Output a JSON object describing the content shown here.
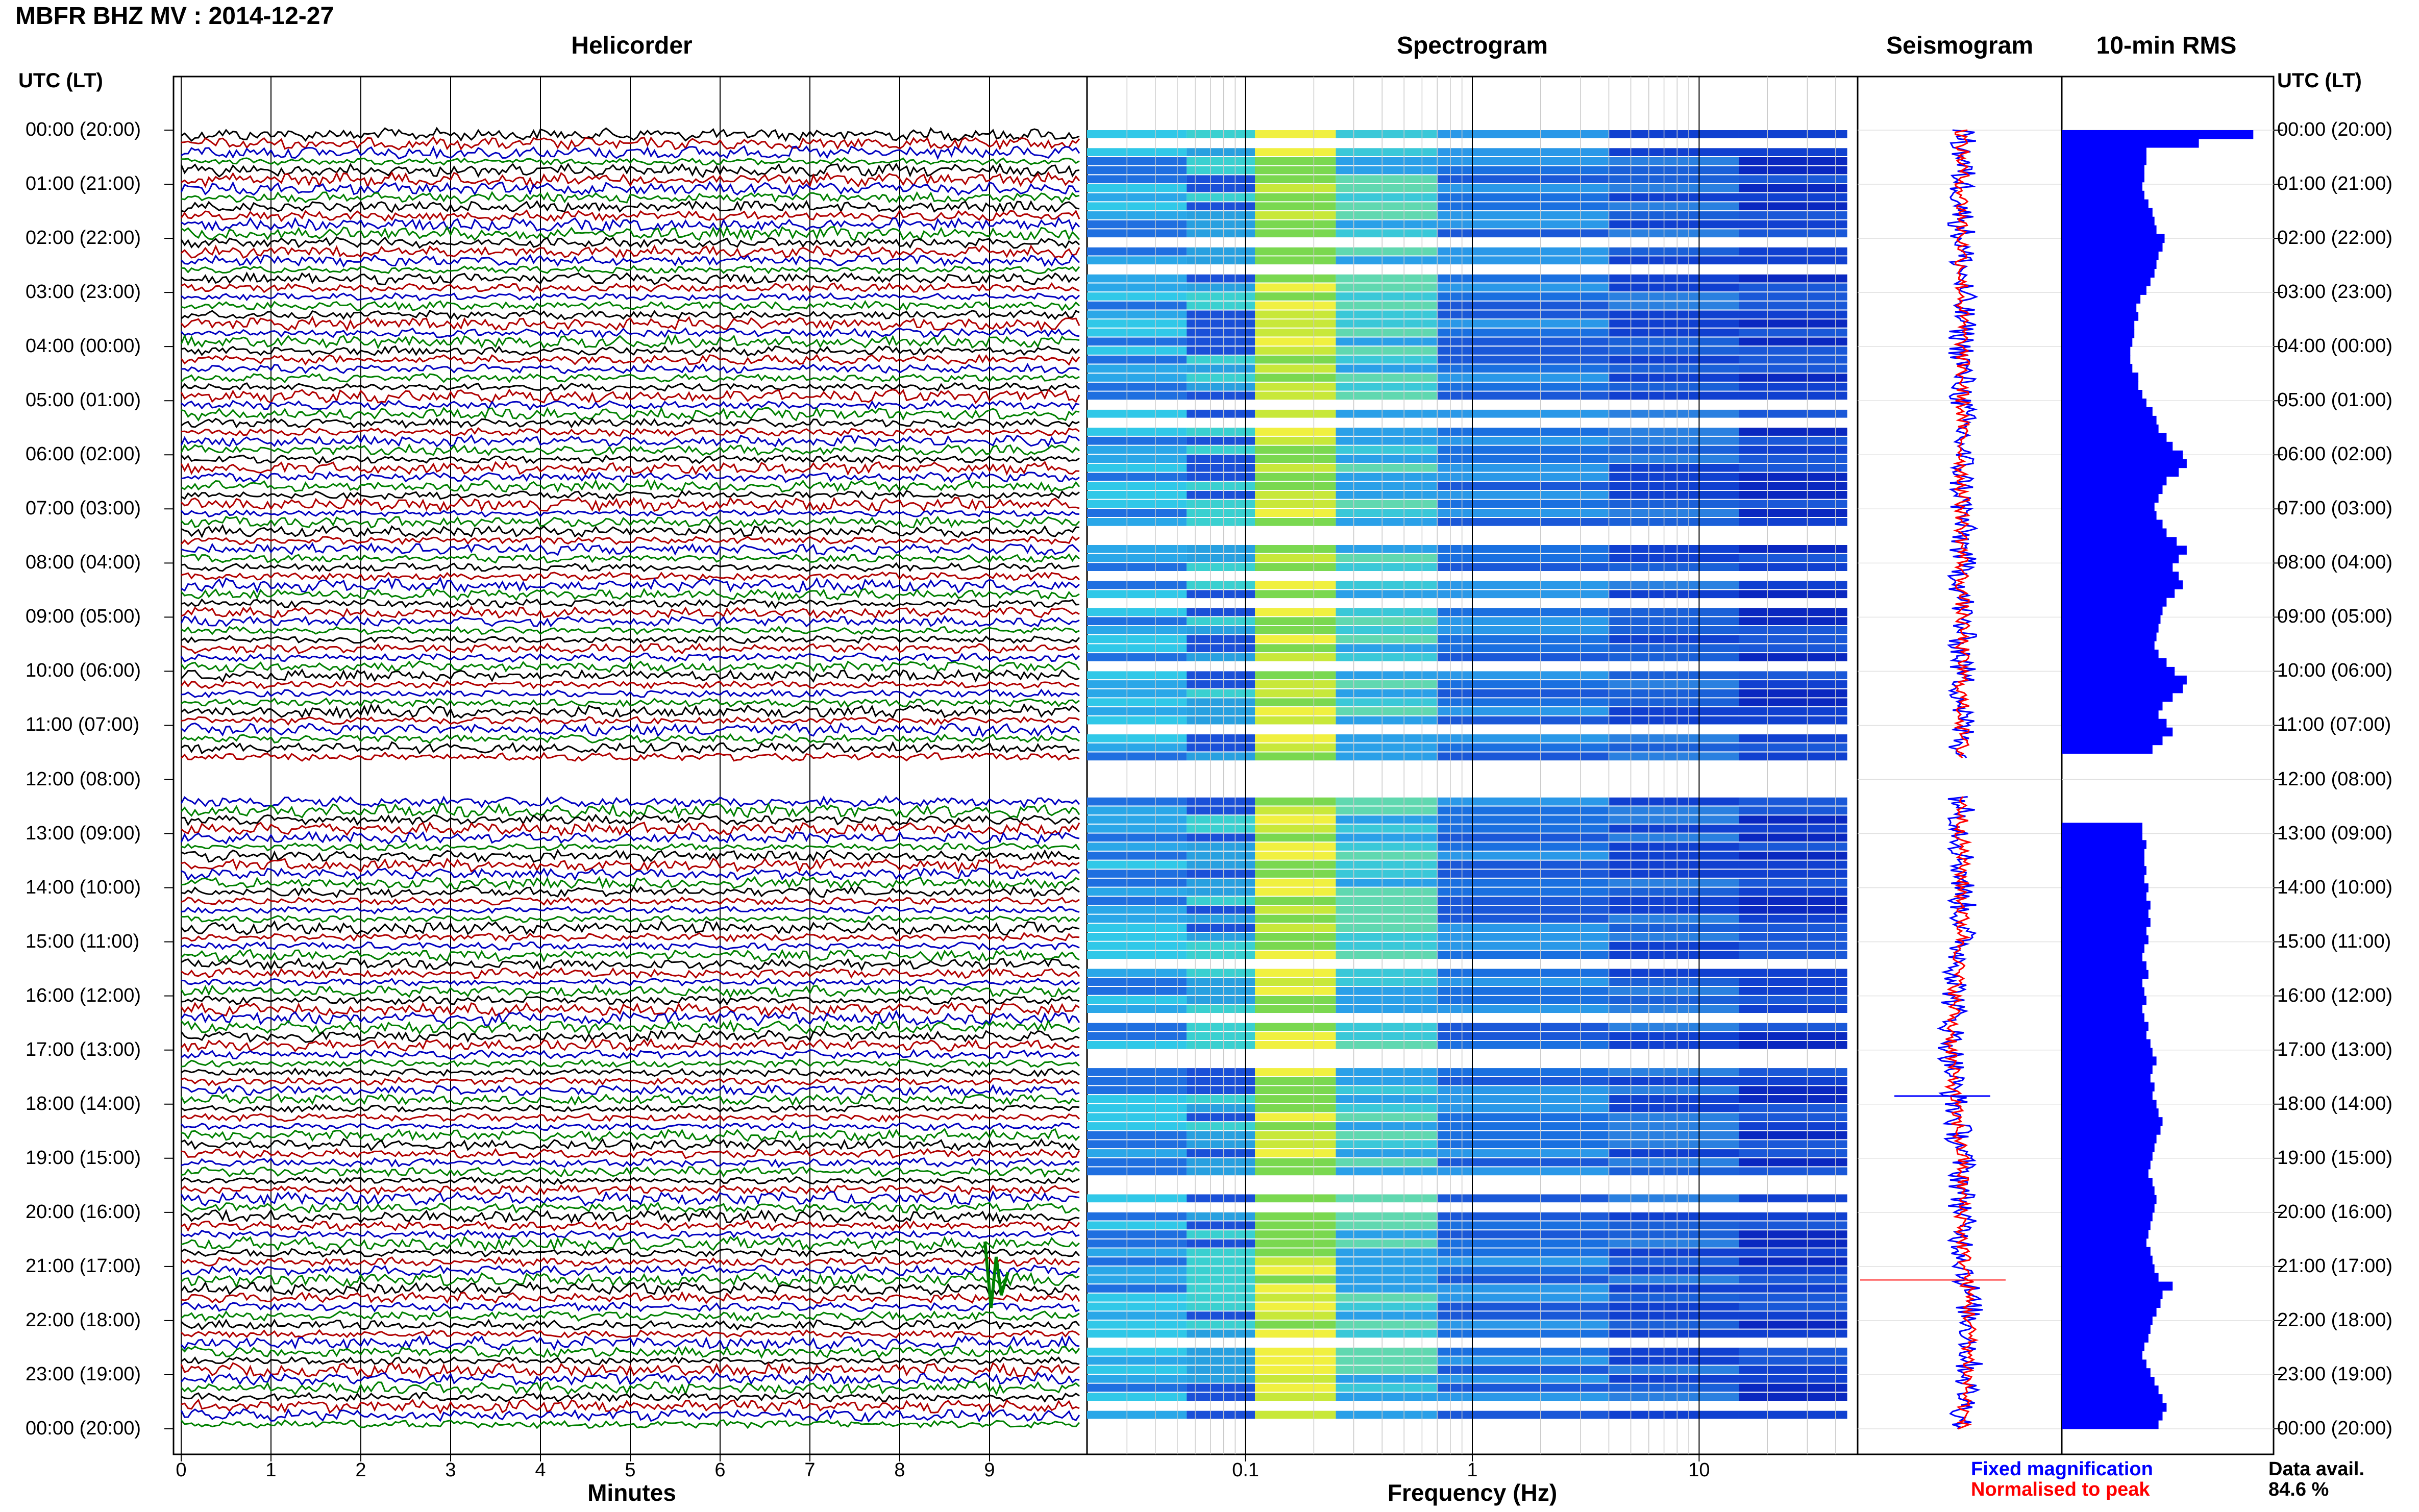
{
  "title": "MBFR BHZ MV : 2014-12-27",
  "panels": {
    "helicorder": "Helicorder",
    "spectrogram": "Spectrogram",
    "seismogram": "Seismogram",
    "rms": "10-min RMS"
  },
  "axis_head_left": "UTC (LT)",
  "axis_head_right": "UTC (LT)",
  "time_labels": [
    "00:00 (20:00)",
    "01:00 (21:00)",
    "02:00 (22:00)",
    "03:00 (23:00)",
    "04:00 (00:00)",
    "05:00 (01:00)",
    "06:00 (02:00)",
    "07:00 (03:00)",
    "08:00 (04:00)",
    "09:00 (05:00)",
    "10:00 (06:00)",
    "11:00 (07:00)",
    "12:00 (08:00)",
    "13:00 (09:00)",
    "14:00 (10:00)",
    "15:00 (11:00)",
    "16:00 (12:00)",
    "17:00 (13:00)",
    "18:00 (14:00)",
    "19:00 (15:00)",
    "20:00 (16:00)",
    "21:00 (17:00)",
    "22:00 (18:00)",
    "23:00 (19:00)",
    "00:00 (20:00)"
  ],
  "chart_data": [
    {
      "type": "line",
      "name": "helicorder",
      "title": "Helicorder",
      "xlabel": "Minutes",
      "xticks": [
        "0",
        "1",
        "2",
        "3",
        "4",
        "5",
        "6",
        "7",
        "8",
        "9"
      ],
      "xlim": [
        0,
        10
      ],
      "trace_colors": [
        "#000000",
        "#b00000",
        "#0000c0",
        "#008000"
      ],
      "gap_hours": [
        11.6,
        12.3
      ]
    },
    {
      "type": "heatmap",
      "name": "spectrogram",
      "title": "Spectrogram",
      "xlabel": "Frequency (Hz)",
      "xscale": "log",
      "xlim": [
        0.02,
        50
      ],
      "xticks": [
        "0.1",
        "1",
        "10"
      ],
      "gap_hours": [
        11.6,
        12.3
      ]
    },
    {
      "type": "line",
      "name": "seismogram",
      "title": "Seismogram",
      "series_colors": [
        "#0000ff",
        "#ff0000"
      ],
      "legend": [
        "Fixed magnification",
        "Normalised to peak"
      ]
    },
    {
      "type": "bar",
      "name": "rms",
      "title": "10-min RMS",
      "orientation": "horizontal",
      "bar_color": "#0000ff",
      "values": [
        0.95,
        0.68,
        0.42,
        0.42,
        0.41,
        0.41,
        0.4,
        0.41,
        0.43,
        0.45,
        0.46,
        0.47,
        0.51,
        0.5,
        0.48,
        0.47,
        0.46,
        0.44,
        0.42,
        0.39,
        0.37,
        0.38,
        0.36,
        0.36,
        0.35,
        0.34,
        0.34,
        0.35,
        0.38,
        0.38,
        0.4,
        0.42,
        0.45,
        0.47,
        0.48,
        0.52,
        0.55,
        0.6,
        0.62,
        0.58,
        0.52,
        0.5,
        0.48,
        0.46,
        0.47,
        0.5,
        0.52,
        0.57,
        0.62,
        0.58,
        0.55,
        0.58,
        0.6,
        0.56,
        0.52,
        0.5,
        0.49,
        0.48,
        0.47,
        0.46,
        0.48,
        0.52,
        0.56,
        0.62,
        0.6,
        0.55,
        0.5,
        0.48,
        0.52,
        0.55,
        0.5,
        0.45,
        0,
        0,
        0,
        0,
        0,
        0,
        0,
        0,
        0.4,
        0.4,
        0.42,
        0.41,
        0.41,
        0.42,
        0.41,
        0.43,
        0.42,
        0.44,
        0.43,
        0.44,
        0.42,
        0.43,
        0.41,
        0.4,
        0.42,
        0.43,
        0.4,
        0.41,
        0.42,
        0.4,
        0.41,
        0.43,
        0.42,
        0.44,
        0.45,
        0.47,
        0.45,
        0.44,
        0.46,
        0.45,
        0.47,
        0.48,
        0.5,
        0.49,
        0.47,
        0.46,
        0.45,
        0.44,
        0.43,
        0.45,
        0.46,
        0.47,
        0.46,
        0.45,
        0.44,
        0.43,
        0.42,
        0.44,
        0.45,
        0.46,
        0.48,
        0.55,
        0.5,
        0.49,
        0.47,
        0.45,
        0.44,
        0.43,
        0.41,
        0.4,
        0.42,
        0.44,
        0.46,
        0.48,
        0.5,
        0.52,
        0.5,
        0.48
      ]
    }
  ],
  "legend": {
    "fixed": "Fixed magnification",
    "normalised": "Normalised to peak",
    "fixed_color": "#0000ff",
    "normalised_color": "#ff0000"
  },
  "data_availability": {
    "label": "Data avail.",
    "value": "84.6 %"
  }
}
